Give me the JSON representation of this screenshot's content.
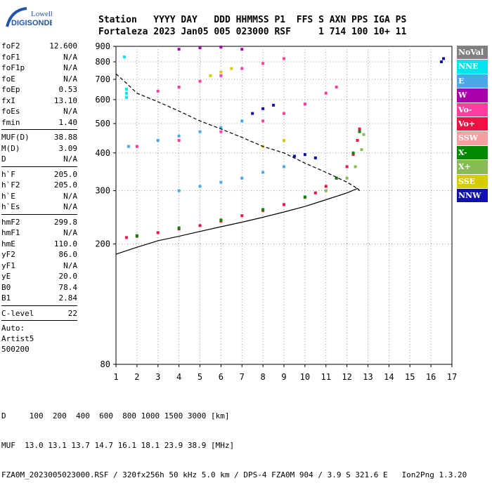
{
  "logo": {
    "line1": "Lowell",
    "line2": "DIGISONDE"
  },
  "header": {
    "row1": "Station   YYYY DAY   DDD HHMMSS P1  FFS S AXN PPS IGA PS",
    "row2": "Fortaleza 2023 Jan05 005 023000 RSF     1 714 100 10+ 11"
  },
  "sidebar": {
    "groups": [
      [
        {
          "name": "foF2",
          "value": "12.600"
        },
        {
          "name": "foF1",
          "value": "N/A"
        },
        {
          "name": "foF1p",
          "value": "N/A"
        },
        {
          "name": "foE",
          "value": "N/A"
        },
        {
          "name": "foEp",
          "value": "0.53"
        },
        {
          "name": "fxI",
          "value": "13.10"
        },
        {
          "name": "foEs",
          "value": "N/A"
        },
        {
          "name": "fmin",
          "value": "1.40"
        }
      ],
      [
        {
          "name": "MUF(D)",
          "value": "38.88"
        },
        {
          "name": "M(D)",
          "value": "3.09"
        },
        {
          "name": "D",
          "value": "N/A"
        }
      ],
      [
        {
          "name": "h`F",
          "value": "205.0"
        },
        {
          "name": "h`F2",
          "value": "205.0"
        },
        {
          "name": "h`E",
          "value": "N/A"
        },
        {
          "name": "h`Es",
          "value": "N/A"
        }
      ],
      [
        {
          "name": "hmF2",
          "value": "299.8"
        },
        {
          "name": "hmF1",
          "value": "N/A"
        },
        {
          "name": "hmE",
          "value": "110.0"
        },
        {
          "name": "yF2",
          "value": "86.0"
        },
        {
          "name": "yF1",
          "value": "N/A"
        },
        {
          "name": "yE",
          "value": "20.0"
        },
        {
          "name": "B0",
          "value": "78.4"
        },
        {
          "name": "B1",
          "value": "2.84"
        }
      ],
      [
        {
          "name": "C-level",
          "value": "22"
        }
      ]
    ],
    "auto": [
      "Auto:",
      "Artist5",
      "500200"
    ]
  },
  "legend": [
    {
      "label": "NoVal",
      "color": "#808080"
    },
    {
      "label": "NNE",
      "color": "#00e5ee"
    },
    {
      "label": "E",
      "color": "#4aa8e8"
    },
    {
      "label": "W",
      "color": "#aa00aa"
    },
    {
      "label": "Vo-",
      "color": "#ff3ea0"
    },
    {
      "label": "Vo+",
      "color": "#ee1144"
    },
    {
      "label": "SSW",
      "color": "#f5a0a0"
    },
    {
      "label": "X-",
      "color": "#008800"
    },
    {
      "label": "X+",
      "color": "#88bb55"
    },
    {
      "label": "SSE",
      "color": "#d4cc00"
    },
    {
      "label": "NNW",
      "color": "#1010aa"
    }
  ],
  "footer": {
    "line1": "D     100  200  400  600  800 1000 1500 3000 [km]",
    "line2": "MUF  13.0 13.1 13.7 14.7 16.1 18.1 23.9 38.9 [MHz]",
    "line3": "FZA0M_2023005023000.RSF / 320fx256h 50 kHz 5.0 km / DPS-4 FZA0M 904 / 3.9 S 321.6 E   Ion2Png 1.3.20"
  },
  "chart_data": {
    "type": "scatter",
    "title": "",
    "xlabel": "",
    "ylabel": "",
    "xlim": [
      1,
      17
    ],
    "ylim": [
      80,
      900
    ],
    "y_scale": "log",
    "x_ticks": [
      1,
      2,
      3,
      4,
      5,
      6,
      7,
      8,
      9,
      10,
      11,
      12,
      13,
      14,
      15,
      16,
      17
    ],
    "y_ticks": [
      80,
      200,
      300,
      400,
      500,
      600,
      700,
      800,
      900
    ],
    "grid": "dotted",
    "series": [
      {
        "name": "Vo+",
        "color": "#ee1144",
        "points": [
          [
            1.5,
            210
          ],
          [
            2,
            212
          ],
          [
            3,
            218
          ],
          [
            4,
            224
          ],
          [
            5,
            230
          ],
          [
            6,
            238
          ],
          [
            7,
            248
          ],
          [
            8,
            258
          ],
          [
            9,
            270
          ],
          [
            10,
            285
          ],
          [
            10.5,
            295
          ],
          [
            11,
            310
          ],
          [
            11.5,
            330
          ],
          [
            12,
            360
          ],
          [
            12.3,
            395
          ],
          [
            12.5,
            440
          ],
          [
            12.6,
            480
          ]
        ]
      },
      {
        "name": "X-",
        "color": "#008800",
        "points": [
          [
            2,
            213
          ],
          [
            4,
            226
          ],
          [
            6,
            240
          ],
          [
            8,
            260
          ],
          [
            10,
            286
          ],
          [
            11.5,
            330
          ],
          [
            12.3,
            400
          ],
          [
            12.6,
            470
          ]
        ]
      },
      {
        "name": "X+",
        "color": "#88bb55",
        "points": [
          [
            11,
            300
          ],
          [
            12,
            330
          ],
          [
            12.4,
            360
          ],
          [
            12.7,
            410
          ],
          [
            12.8,
            460
          ]
        ]
      },
      {
        "name": "E",
        "color": "#4aa8e8",
        "points": [
          [
            4,
            300
          ],
          [
            5,
            310
          ],
          [
            6,
            320
          ],
          [
            7,
            330
          ],
          [
            8,
            345
          ],
          [
            9,
            360
          ],
          [
            1.6,
            420
          ],
          [
            3,
            440
          ],
          [
            4,
            455
          ],
          [
            5,
            470
          ],
          [
            6,
            485
          ],
          [
            7,
            510
          ]
        ]
      },
      {
        "name": "Vo-",
        "color": "#ff3ea0",
        "points": [
          [
            2,
            420
          ],
          [
            4,
            440
          ],
          [
            6,
            470
          ],
          [
            8,
            510
          ],
          [
            9,
            540
          ],
          [
            10,
            580
          ],
          [
            11,
            630
          ],
          [
            11.5,
            660
          ],
          [
            3,
            640
          ],
          [
            4,
            660
          ],
          [
            5,
            690
          ],
          [
            6,
            720
          ],
          [
            7,
            760
          ],
          [
            8,
            790
          ],
          [
            9,
            820
          ]
        ]
      },
      {
        "name": "NNW",
        "color": "#1010aa",
        "points": [
          [
            7.5,
            540
          ],
          [
            8,
            560
          ],
          [
            8.5,
            575
          ],
          [
            9.5,
            390
          ],
          [
            10,
            395
          ],
          [
            10.5,
            385
          ],
          [
            16.5,
            800
          ],
          [
            16.6,
            820
          ]
        ]
      },
      {
        "name": "SSE",
        "color": "#d4cc00",
        "points": [
          [
            5.5,
            720
          ],
          [
            6,
            740
          ],
          [
            6.5,
            760
          ],
          [
            8,
            420
          ],
          [
            9,
            440
          ]
        ]
      },
      {
        "name": "W",
        "color": "#aa00aa",
        "points": [
          [
            4,
            880
          ],
          [
            5,
            890
          ],
          [
            6,
            895
          ],
          [
            7,
            880
          ]
        ]
      },
      {
        "name": "NNE",
        "color": "#00e5ee",
        "points": [
          [
            1.5,
            610
          ],
          [
            1.5,
            630
          ],
          [
            1.5,
            650
          ],
          [
            1.4,
            830
          ]
        ]
      }
    ],
    "traces": [
      {
        "name": "profile",
        "style": "solid",
        "points": [
          [
            1,
            185
          ],
          [
            2,
            195
          ],
          [
            3,
            205
          ],
          [
            4,
            212
          ],
          [
            5,
            220
          ],
          [
            6,
            228
          ],
          [
            7,
            236
          ],
          [
            8,
            245
          ],
          [
            9,
            255
          ],
          [
            10,
            266
          ],
          [
            11,
            280
          ],
          [
            12,
            295
          ],
          [
            12.5,
            305
          ],
          [
            12.6,
            300
          ]
        ]
      },
      {
        "name": "model",
        "style": "dashed",
        "points": [
          [
            1,
            730
          ],
          [
            1.5,
            680
          ],
          [
            2,
            630
          ],
          [
            3,
            590
          ],
          [
            4,
            550
          ],
          [
            5,
            510
          ],
          [
            6,
            480
          ],
          [
            7,
            450
          ],
          [
            8,
            420
          ],
          [
            9,
            400
          ],
          [
            10,
            370
          ],
          [
            11,
            345
          ],
          [
            12,
            320
          ],
          [
            12.5,
            305
          ],
          [
            12.6,
            300
          ]
        ]
      }
    ]
  }
}
